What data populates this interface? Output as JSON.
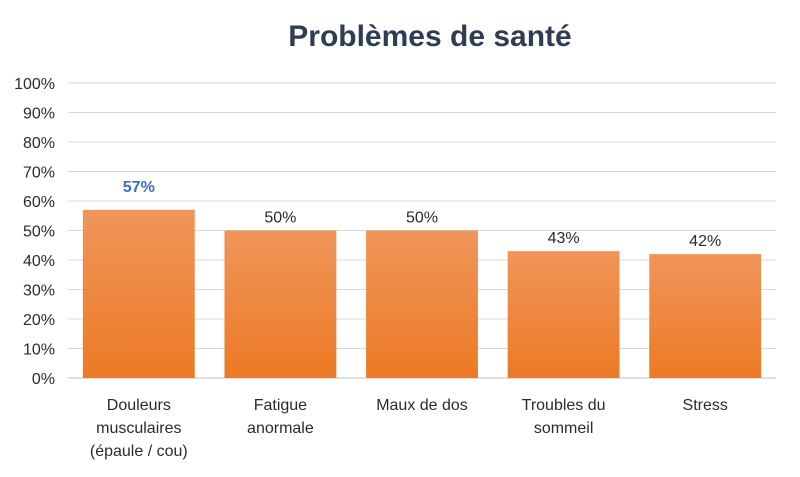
{
  "chart_data": {
    "type": "bar",
    "title": "Problèmes de santé",
    "categories": [
      [
        "Douleurs",
        "musculaires",
        "(épaule / cou)"
      ],
      [
        "Fatigue",
        "anormale"
      ],
      [
        "Maux de dos"
      ],
      [
        "Troubles du",
        "sommeil"
      ],
      [
        "Stress"
      ]
    ],
    "values": [
      57,
      50,
      50,
      43,
      42
    ],
    "data_labels": [
      "57%",
      "50%",
      "50%",
      "43%",
      "42%"
    ],
    "highlighted_index": 0,
    "ylim": [
      0,
      100
    ],
    "yticks": [
      "0%",
      "10%",
      "20%",
      "30%",
      "40%",
      "50%",
      "60%",
      "70%",
      "80%",
      "90%",
      "100%"
    ],
    "xlabel": "",
    "ylabel": "",
    "grid": true,
    "legend": "none",
    "colors": {
      "bar_top": "#f0955a",
      "bar_bottom": "#ec7a25",
      "highlight_label": "#3a6fc2",
      "title": "#2e3d55",
      "grid": "#d9d9d9"
    }
  }
}
